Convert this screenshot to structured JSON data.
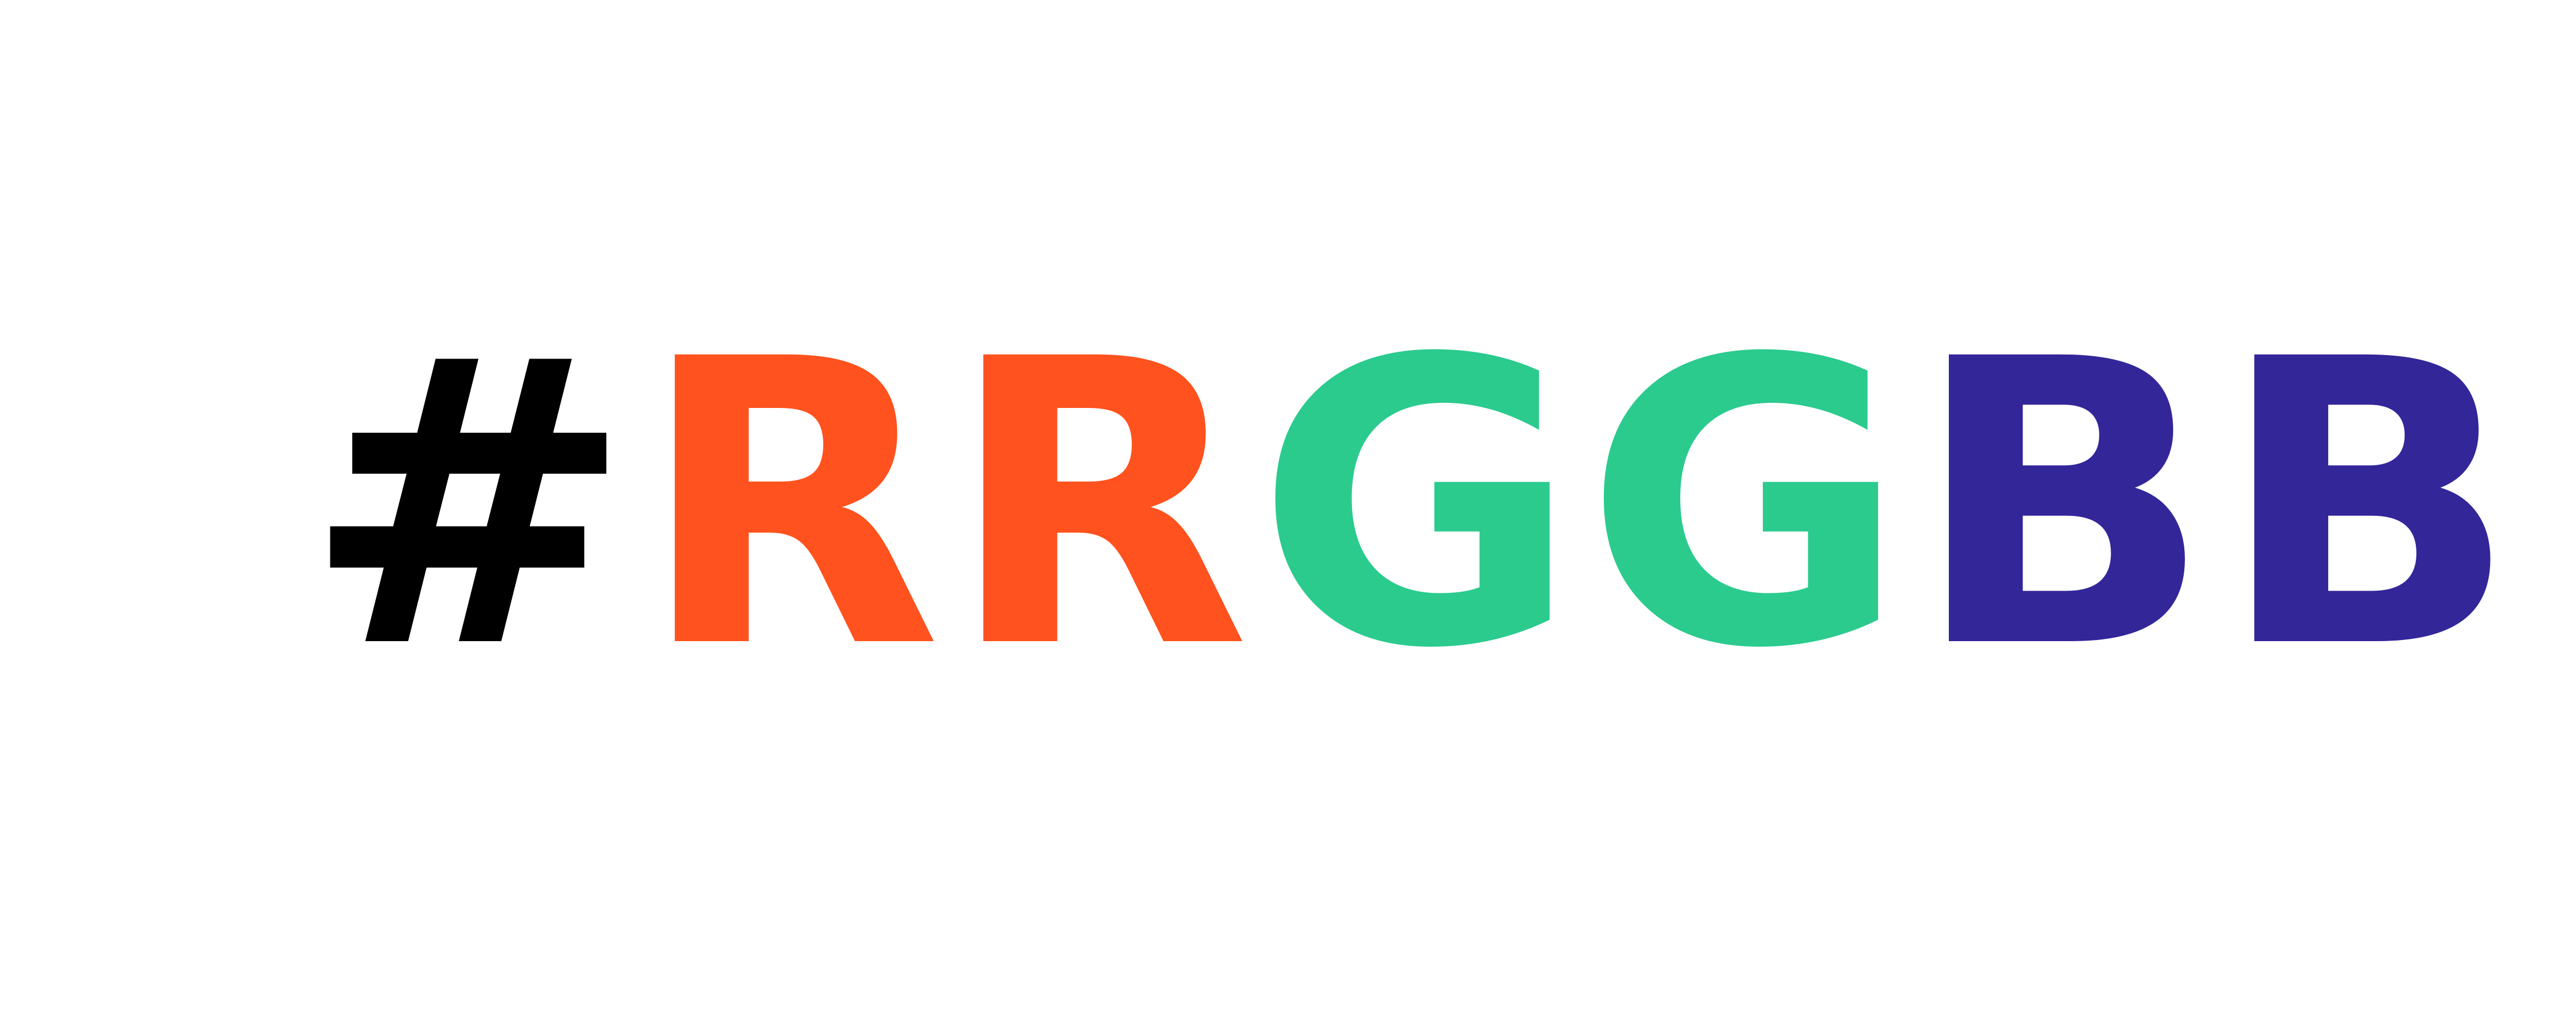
{
  "headline": {
    "hash": "#",
    "red": "RR",
    "green": "GG",
    "blue": "BB"
  },
  "colors": {
    "hash": "#000000",
    "red": "#FF521E",
    "green": "#2BCB8E",
    "blue": "#332699",
    "background": "#FFFFFF"
  }
}
